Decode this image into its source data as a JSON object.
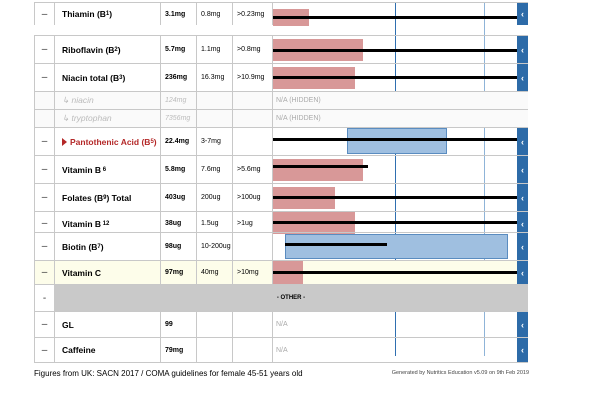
{
  "rows": [
    {
      "dash": "–",
      "name": "Thiamin (B1)",
      "amount": "3.1mg",
      "rni": "0.8mg",
      "limit": ">0.23mg",
      "button": "‹"
    },
    {
      "dash": "–",
      "name": "Riboflavin (B2)",
      "amount": "5.7mg",
      "rni": "1.1mg",
      "limit": ">0.8mg",
      "button": "‹"
    },
    {
      "dash": "–",
      "name": "Niacin total (B3)",
      "amount": "236mg",
      "rni": "16.3mg",
      "limit": ">10.9mg",
      "button": "‹"
    },
    {
      "dash": "",
      "name": "↳ niacin",
      "amount": "124mg",
      "rni": "",
      "limit": "",
      "bar_text": "N/A (HIDDEN)"
    },
    {
      "dash": "",
      "name": "↳ tryptophan",
      "amount": "7356mg",
      "rni": "",
      "limit": "",
      "bar_text": "N/A (HIDDEN)"
    },
    {
      "dash": "–",
      "name": "Pantothenic Acid (B5)",
      "amount": "22.4mg",
      "rni": "3-7mg",
      "limit": "",
      "button": "‹"
    },
    {
      "dash": "–",
      "name": "Vitamin B 6",
      "amount": "5.8mg",
      "rni": "7.6mg",
      "limit": ">5.6mg",
      "button": "‹"
    },
    {
      "dash": "–",
      "name": "Folates (B9) Total",
      "amount": "403ug",
      "rni": "200ug",
      "limit": ">100ug",
      "button": "‹"
    },
    {
      "dash": "–",
      "name": "Vitamin B 12",
      "amount": "38ug",
      "rni": "1.5ug",
      "limit": ">1ug",
      "button": "‹"
    },
    {
      "dash": "–",
      "name": "Biotin (B7)",
      "amount": "98ug",
      "rni": "10-200ug",
      "limit": "",
      "button": "‹"
    },
    {
      "dash": "–",
      "name": "Vitamin C",
      "amount": "97mg",
      "rni": "40mg",
      "limit": ">10mg",
      "button": "‹"
    },
    {
      "dash": "-",
      "other_label": "- OTHER -"
    },
    {
      "dash": "–",
      "name": "GL",
      "amount": "99",
      "rni": "",
      "limit": "",
      "bar_text": "N/A",
      "button": "‹"
    },
    {
      "dash": "–",
      "name": "Caffeine",
      "amount": "79mg",
      "rni": "",
      "limit": "",
      "bar_text": "N/A",
      "button": "‹"
    }
  ],
  "footer": {
    "left": "Figures from UK: SACN 2017 / COMA guidelines for female 45-51 years old",
    "right": "Generated by Nutritics Education v5.09 on 9th Feb 2019"
  },
  "colors": {
    "pink_bar": "#d89898",
    "blue_bar": "#9fbfe0",
    "button": "#2d6ba8",
    "highlight_row": "#fdfdea",
    "other_row": "#c9c9c9",
    "pantothenic_name": "#b42828"
  }
}
